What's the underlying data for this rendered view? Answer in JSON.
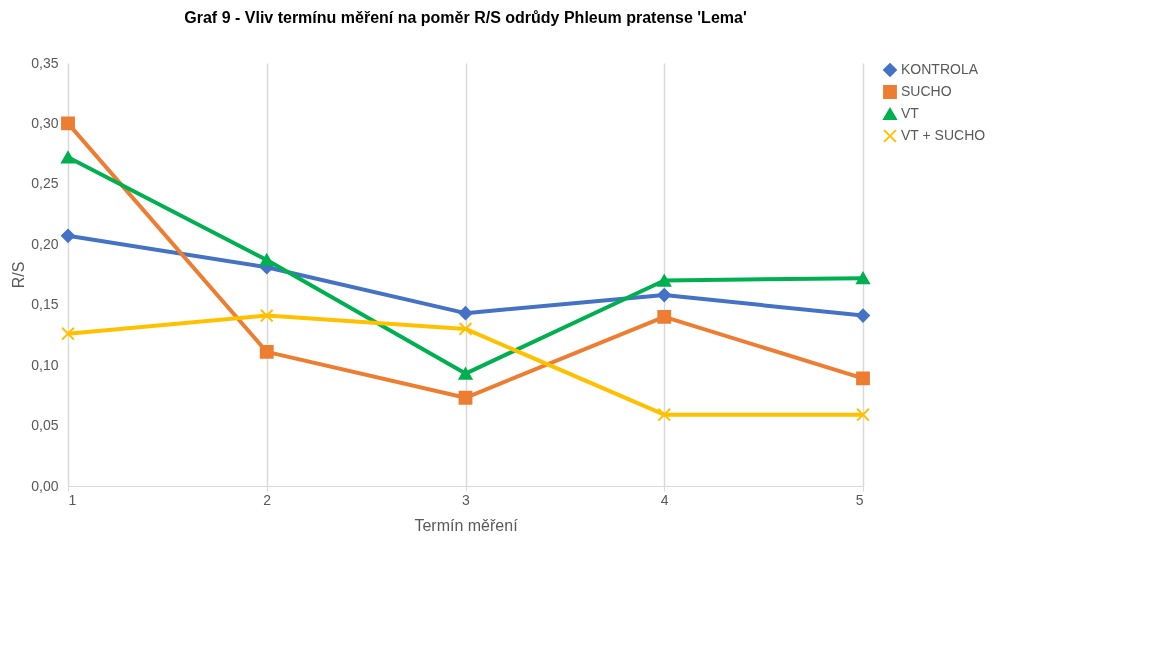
{
  "chart_data": {
    "type": "line",
    "title": "Graf 9 - Vliv termínu měření na poměr R/S odrůdy Phleum pratense 'Lema'",
    "xlabel": "Termín měření",
    "ylabel": "R/S",
    "x": [
      1,
      2,
      3,
      4,
      5
    ],
    "xlim": [
      1,
      5
    ],
    "xticks": [
      1,
      2,
      3,
      4,
      5
    ],
    "ylim": [
      0,
      0.35
    ],
    "yticks": [
      {
        "value": 0,
        "label": "0,00"
      },
      {
        "value": 0.05,
        "label": "0,05"
      },
      {
        "value": 0.1,
        "label": "0,10"
      },
      {
        "value": 0.15,
        "label": "0,15"
      },
      {
        "value": 0.2,
        "label": "0,20"
      },
      {
        "value": 0.25,
        "label": "0,25"
      },
      {
        "value": 0.3,
        "label": "0,30"
      },
      {
        "value": 0.35,
        "label": "0,35"
      }
    ],
    "grid": "x",
    "legend": "right",
    "series": [
      {
        "name": "KONTROLA",
        "color": "#4472c4",
        "marker": "diamond",
        "values": [
          0.207,
          0.181,
          0.143,
          0.158,
          0.141
        ]
      },
      {
        "name": "SUCHO",
        "color": "#ed7d31",
        "marker": "square",
        "values": [
          0.3,
          0.111,
          0.073,
          0.14,
          0.089
        ]
      },
      {
        "name": "VT",
        "color": "#00b050",
        "marker": "triangle",
        "values": [
          0.272,
          0.187,
          0.093,
          0.17,
          0.172
        ]
      },
      {
        "name": "VT + SUCHO",
        "color": "#ffc000",
        "marker": "cross",
        "values": [
          0.126,
          0.141,
          0.13,
          0.059,
          0.059
        ]
      }
    ]
  }
}
